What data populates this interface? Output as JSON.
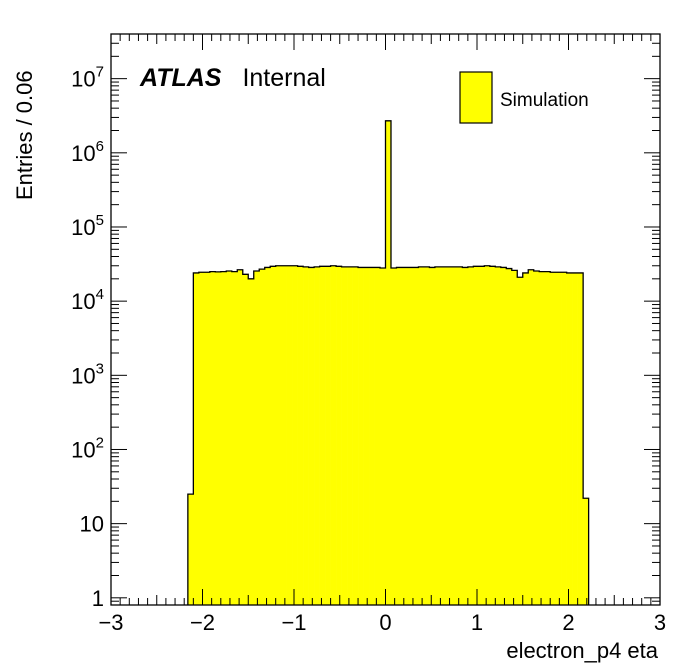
{
  "chart_data": {
    "type": "histogram",
    "title": "",
    "xlabel": "electron_p4 eta",
    "ylabel": "Entries / 0.06",
    "xlim": [
      -3,
      3
    ],
    "ylim": [
      0.8,
      40000000
    ],
    "y_scale": "log",
    "bin_width": 0.06,
    "x_tick_labels": [
      "−3",
      "−2",
      "−1",
      "0",
      "1",
      "2",
      "3"
    ],
    "x_tick_values": [
      -3,
      -2,
      -1,
      0,
      1,
      2,
      3
    ],
    "y_ticks": [
      {
        "value": 1,
        "base": "1",
        "exp": ""
      },
      {
        "value": 10,
        "base": "10",
        "exp": ""
      },
      {
        "value": 100,
        "base": "10",
        "exp": "2"
      },
      {
        "value": 1000,
        "base": "10",
        "exp": "3"
      },
      {
        "value": 10000,
        "base": "10",
        "exp": "4"
      },
      {
        "value": 100000,
        "base": "10",
        "exp": "5"
      },
      {
        "value": 1000000,
        "base": "10",
        "exp": "6"
      },
      {
        "value": 10000000,
        "base": "10",
        "exp": "7"
      }
    ],
    "grid": false,
    "legend": {
      "position": "top-right",
      "entries": [
        {
          "label": "Simulation",
          "color": "#ffff00"
        }
      ]
    },
    "label_bold": "ATLAS",
    "label_normal": "Internal",
    "series": [
      {
        "name": "Simulation",
        "color": "#ffff00",
        "edge_color": "#000000",
        "bins": [
          {
            "x": -2.16,
            "value": 25
          },
          {
            "x": -2.1,
            "value": 24000
          },
          {
            "x": -2.04,
            "value": 24500
          },
          {
            "x": -1.98,
            "value": 24500
          },
          {
            "x": -1.92,
            "value": 25000
          },
          {
            "x": -1.86,
            "value": 24800
          },
          {
            "x": -1.8,
            "value": 25000
          },
          {
            "x": -1.74,
            "value": 25500
          },
          {
            "x": -1.68,
            "value": 25000
          },
          {
            "x": -1.62,
            "value": 26500
          },
          {
            "x": -1.56,
            "value": 23000
          },
          {
            "x": -1.5,
            "value": 20000
          },
          {
            "x": -1.44,
            "value": 25500
          },
          {
            "x": -1.38,
            "value": 27000
          },
          {
            "x": -1.32,
            "value": 28500
          },
          {
            "x": -1.26,
            "value": 29500
          },
          {
            "x": -1.2,
            "value": 30000
          },
          {
            "x": -1.14,
            "value": 30000
          },
          {
            "x": -1.08,
            "value": 30000
          },
          {
            "x": -1.02,
            "value": 30000
          },
          {
            "x": -0.96,
            "value": 29500
          },
          {
            "x": -0.9,
            "value": 29000
          },
          {
            "x": -0.84,
            "value": 28500
          },
          {
            "x": -0.78,
            "value": 29000
          },
          {
            "x": -0.72,
            "value": 29500
          },
          {
            "x": -0.66,
            "value": 29500
          },
          {
            "x": -0.6,
            "value": 30000
          },
          {
            "x": -0.54,
            "value": 29500
          },
          {
            "x": -0.48,
            "value": 29000
          },
          {
            "x": -0.42,
            "value": 29000
          },
          {
            "x": -0.36,
            "value": 29000
          },
          {
            "x": -0.3,
            "value": 28500
          },
          {
            "x": -0.24,
            "value": 28500
          },
          {
            "x": -0.18,
            "value": 28500
          },
          {
            "x": -0.12,
            "value": 28500
          },
          {
            "x": -0.06,
            "value": 28000
          },
          {
            "x": 0.0,
            "value": 2700000
          },
          {
            "x": 0.06,
            "value": 28000
          },
          {
            "x": 0.12,
            "value": 28500
          },
          {
            "x": 0.18,
            "value": 28500
          },
          {
            "x": 0.24,
            "value": 28500
          },
          {
            "x": 0.3,
            "value": 28500
          },
          {
            "x": 0.36,
            "value": 29000
          },
          {
            "x": 0.42,
            "value": 29000
          },
          {
            "x": 0.48,
            "value": 28500
          },
          {
            "x": 0.54,
            "value": 29000
          },
          {
            "x": 0.6,
            "value": 29000
          },
          {
            "x": 0.66,
            "value": 29000
          },
          {
            "x": 0.72,
            "value": 29000
          },
          {
            "x": 0.78,
            "value": 29000
          },
          {
            "x": 0.84,
            "value": 28500
          },
          {
            "x": 0.9,
            "value": 29000
          },
          {
            "x": 0.96,
            "value": 29500
          },
          {
            "x": 1.02,
            "value": 29500
          },
          {
            "x": 1.08,
            "value": 30000
          },
          {
            "x": 1.14,
            "value": 29500
          },
          {
            "x": 1.2,
            "value": 29000
          },
          {
            "x": 1.26,
            "value": 28500
          },
          {
            "x": 1.32,
            "value": 27500
          },
          {
            "x": 1.38,
            "value": 26000
          },
          {
            "x": 1.44,
            "value": 21000
          },
          {
            "x": 1.5,
            "value": 24000
          },
          {
            "x": 1.56,
            "value": 26500
          },
          {
            "x": 1.62,
            "value": 25500
          },
          {
            "x": 1.68,
            "value": 25000
          },
          {
            "x": 1.74,
            "value": 25000
          },
          {
            "x": 1.8,
            "value": 24500
          },
          {
            "x": 1.86,
            "value": 24500
          },
          {
            "x": 1.92,
            "value": 24500
          },
          {
            "x": 1.98,
            "value": 24000
          },
          {
            "x": 2.04,
            "value": 24000
          },
          {
            "x": 2.1,
            "value": 24000
          },
          {
            "x": 2.16,
            "value": 22
          },
          {
            "x": 2.22,
            "value": 0
          }
        ]
      }
    ]
  }
}
